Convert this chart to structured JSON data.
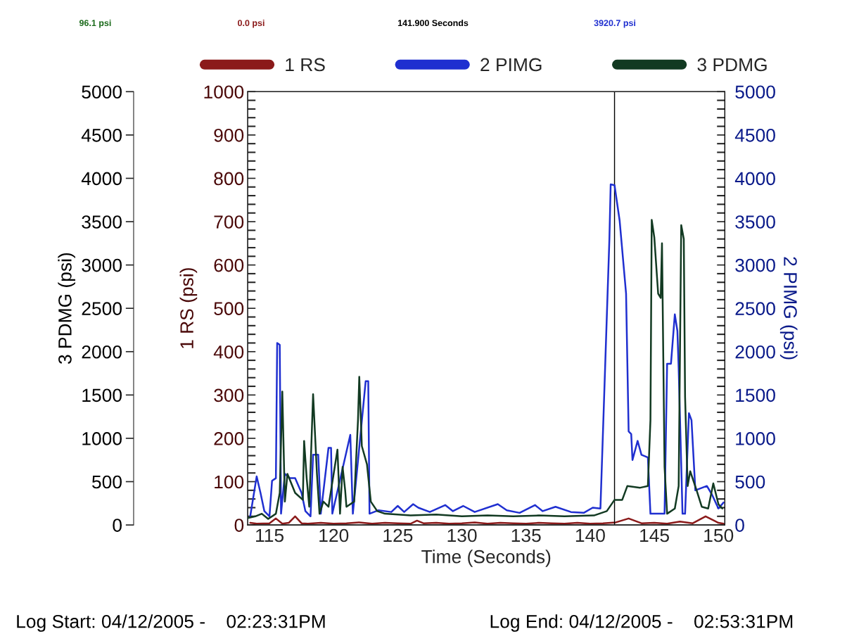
{
  "chart_data": {
    "type": "line",
    "xlabel": "Time (Seconds)",
    "ylabel": "1 RS (psi)",
    "y2label": "2 PIMG (psi)",
    "y3label": "3 PDMG (psi)",
    "xlim": [
      113.3,
      150.5
    ],
    "xticks": [
      115,
      120,
      125,
      130,
      135,
      140,
      145,
      150
    ],
    "ylim": [
      0,
      1000
    ],
    "yticks": [
      0,
      100,
      200,
      300,
      400,
      500,
      600,
      700,
      800,
      900,
      1000
    ],
    "y2lim": [
      0,
      5000
    ],
    "y2ticks": [
      0,
      500,
      1000,
      1500,
      2000,
      2500,
      3000,
      3500,
      4000,
      4500,
      5000
    ],
    "y3lim": [
      0,
      5000
    ],
    "y3ticks": [
      0,
      500,
      1000,
      1500,
      2000,
      2500,
      3000,
      3500,
      4000,
      4500,
      5000
    ],
    "legend": "top",
    "grid": false,
    "ref_lines": [
      {
        "axis": "x",
        "value": 141.9,
        "color": "#000000"
      }
    ],
    "annotations": [
      "96.1 psi",
      "0.0 psi",
      "141.900 Seconds",
      "3920.7 psi",
      "Log Start: 04/12/2005 -    02:23:31PM",
      "Log End: 04/12/2005 -    02:53:31PM"
    ],
    "series": [
      {
        "name": "1 RS",
        "color": "#8b1a1a",
        "x": [
          113.5,
          114,
          115,
          115.5,
          116,
          116.5,
          117,
          117.5,
          118,
          119,
          120,
          121,
          122,
          123,
          124,
          125,
          126,
          126.5,
          127,
          128,
          129,
          130,
          131,
          132,
          133,
          134,
          135,
          136,
          137,
          138,
          139,
          140,
          141,
          142,
          143,
          144,
          145,
          146,
          147,
          148,
          149,
          150,
          150.4
        ],
        "values": [
          5,
          3,
          4,
          15,
          3,
          5,
          20,
          4,
          3,
          5,
          3,
          4,
          6,
          3,
          5,
          4,
          3,
          10,
          4,
          5,
          3,
          4,
          6,
          3,
          5,
          4,
          3,
          5,
          4,
          3,
          5,
          3,
          4,
          6,
          15,
          4,
          5,
          3,
          8,
          4,
          20,
          5,
          3
        ]
      },
      {
        "name": "2 PIMG",
        "color": "#1f2fd0",
        "axis": "y2",
        "x": [
          113.5,
          114.0,
          114.3,
          114.6,
          115.0,
          115.2,
          115.5,
          115.6,
          115.8,
          115.9,
          116.2,
          116.6,
          117.0,
          117.5,
          117.8,
          118.2,
          118.4,
          118.8,
          119.0,
          119.6,
          119.8,
          119.9,
          121.3,
          121.5,
          122.5,
          122.7,
          122.8,
          123.5,
          124.5,
          125.0,
          125.5,
          126.2,
          126.6,
          127.5,
          128.7,
          129.3,
          130.1,
          131,
          132.8,
          133.5,
          134.5,
          135.7,
          136.3,
          137.3,
          138.5,
          139.5,
          140.2,
          140.8,
          141.5,
          141.6,
          141.9,
          142.3,
          142.8,
          143.0,
          143.2,
          143.3,
          143.7,
          144.0,
          144.5,
          144.7,
          145.8,
          146.0,
          146.3,
          146.6,
          146.8,
          146.9,
          147.2,
          147.4,
          147.7,
          147.9,
          148.2,
          149.1,
          149.5,
          150.0,
          150.4
        ],
        "values": [
          100,
          560,
          370,
          160,
          100,
          510,
          540,
          2100,
          2080,
          130,
          590,
          540,
          540,
          370,
          160,
          100,
          810,
          810,
          130,
          890,
          890,
          130,
          1040,
          130,
          1660,
          1660,
          130,
          170,
          150,
          220,
          150,
          240,
          200,
          150,
          230,
          160,
          220,
          150,
          240,
          170,
          140,
          230,
          160,
          210,
          150,
          140,
          200,
          190,
          3300,
          3930,
          3920,
          3510,
          2670,
          1080,
          1050,
          750,
          970,
          810,
          780,
          130,
          130,
          1860,
          1860,
          2430,
          2240,
          1810,
          130,
          130,
          1290,
          1210,
          400,
          450,
          350,
          190,
          260
        ]
      },
      {
        "name": "3 PDMG",
        "color": "#123a22",
        "axis": "y3",
        "x": [
          113.3,
          113.9,
          114.4,
          114.9,
          115.5,
          115.8,
          116.0,
          116.2,
          116.4,
          117.0,
          117.6,
          117.7,
          117.9,
          118.1,
          118.4,
          118.7,
          118.9,
          119.2,
          119.6,
          120.3,
          120.5,
          120.7,
          120.9,
          121.0,
          121.6,
          121.9,
          122.0,
          122.2,
          122.6,
          122.9,
          123.4,
          124.0,
          126,
          128,
          130,
          132,
          134,
          136,
          138,
          140.3,
          141.3,
          141.9,
          142.5,
          142.9,
          143.9,
          144.5,
          144.7,
          144.8,
          145.0,
          145.3,
          145.5,
          145.6,
          145.8,
          146.0,
          146.6,
          146.9,
          147.1,
          147.3,
          147.4,
          147.6,
          147.8,
          148.3,
          148.7,
          149.2,
          149.6,
          150.0,
          150.3
        ],
        "values": [
          80,
          100,
          130,
          70,
          130,
          370,
          1540,
          270,
          590,
          370,
          290,
          970,
          540,
          210,
          1510,
          590,
          130,
          270,
          210,
          870,
          130,
          670,
          400,
          210,
          270,
          1210,
          1710,
          910,
          700,
          270,
          160,
          130,
          110,
          120,
          100,
          110,
          100,
          110,
          100,
          110,
          160,
          290,
          290,
          450,
          430,
          450,
          1210,
          3520,
          3320,
          2670,
          2620,
          3250,
          670,
          130,
          190,
          450,
          3460,
          3300,
          1480,
          450,
          620,
          400,
          210,
          190,
          480,
          240,
          190
        ]
      }
    ]
  }
}
